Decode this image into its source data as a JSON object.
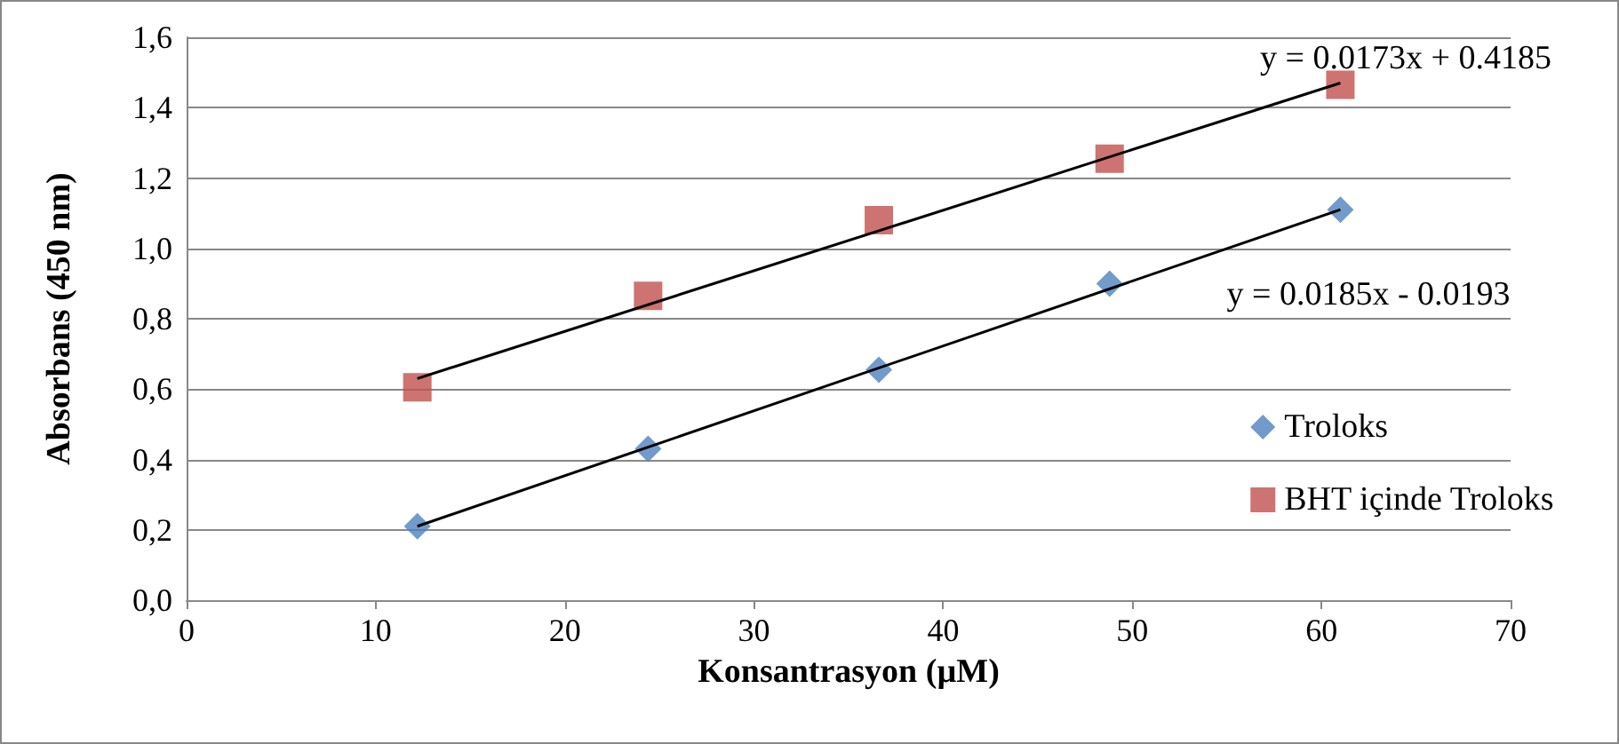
{
  "chart_data": {
    "type": "scatter",
    "xlabel": "Konsantrasyon (µM)",
    "ylabel": "Absorbans (450 nm)",
    "xlim": [
      0,
      70
    ],
    "xticks": [
      0,
      10,
      20,
      30,
      40,
      50,
      60,
      70
    ],
    "ylim": [
      0,
      1.6
    ],
    "yticks": [
      {
        "value": 0,
        "label": "0,0"
      },
      {
        "value": 0.2,
        "label": "0,2"
      },
      {
        "value": 0.4,
        "label": "0,4"
      },
      {
        "value": 0.6,
        "label": "0,6"
      },
      {
        "value": 0.8,
        "label": "0,8"
      },
      {
        "value": 1.0,
        "label": "1,0"
      },
      {
        "value": 1.2,
        "label": "1,2"
      },
      {
        "value": 1.4,
        "label": "1,4"
      },
      {
        "value": 1.6,
        "label": "1,6"
      }
    ],
    "grid": "y",
    "legend": "right",
    "series": [
      {
        "name": "Troloks",
        "color": "#4f81bd",
        "marker": "diamond",
        "x": [
          12.2,
          24.4,
          36.6,
          48.8,
          61
        ],
        "values": [
          0.21,
          0.43,
          0.655,
          0.9,
          1.11
        ]
      },
      {
        "name": "BHT içinde Troloks",
        "color": "#c0504d",
        "marker": "square",
        "x": [
          12.2,
          24.4,
          36.6,
          48.8,
          61
        ],
        "values": [
          0.605,
          0.865,
          1.08,
          1.255,
          1.465
        ]
      },
      {
        "type": "line",
        "color": "#000000",
        "marker": "none",
        "x": [
          12.2,
          61
        ],
        "values": [
          0.21,
          1.11
        ]
      },
      {
        "type": "line",
        "color": "#000000",
        "marker": "none",
        "x": [
          12.2,
          61
        ],
        "values": [
          0.63,
          1.47
        ]
      }
    ],
    "annotations": [
      "y = 0.0173x + 0.4185",
      "y = 0.0185x - 0.0193"
    ]
  }
}
